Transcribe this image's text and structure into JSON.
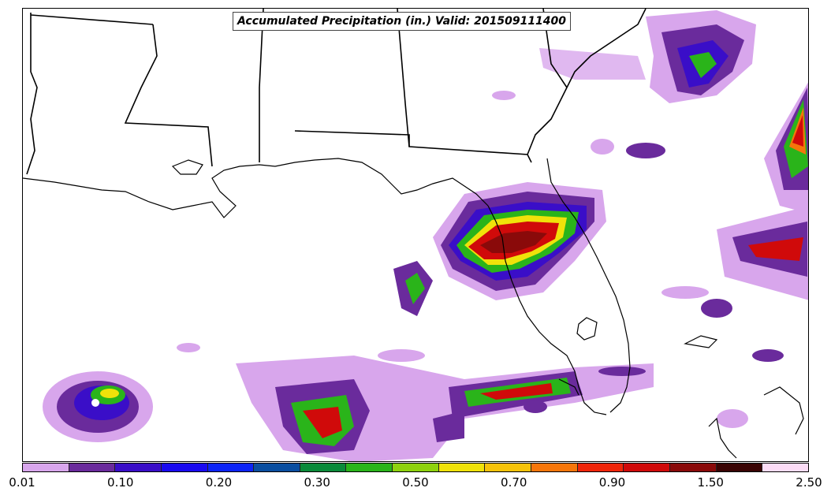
{
  "map": {
    "title": "Accumulated Precipitation (in.) Valid: 201509111400"
  },
  "legend": {
    "tick_labels": [
      "0.01",
      "0.10",
      "0.20",
      "0.30",
      "0.50",
      "0.70",
      "0.90",
      "1.50",
      "2.50"
    ],
    "colors": [
      "#d8a6ec",
      "#6a2b9c",
      "#3a0ec8",
      "#1a0af0",
      "#0c24f6",
      "#0a4ea0",
      "#0a8a3a",
      "#2ab41a",
      "#8ed20e",
      "#f0e20a",
      "#f6c30a",
      "#f6760a",
      "#f0260a",
      "#d00a0a",
      "#8a0a0a",
      "#3a0404",
      "#fcdcf6"
    ]
  }
}
